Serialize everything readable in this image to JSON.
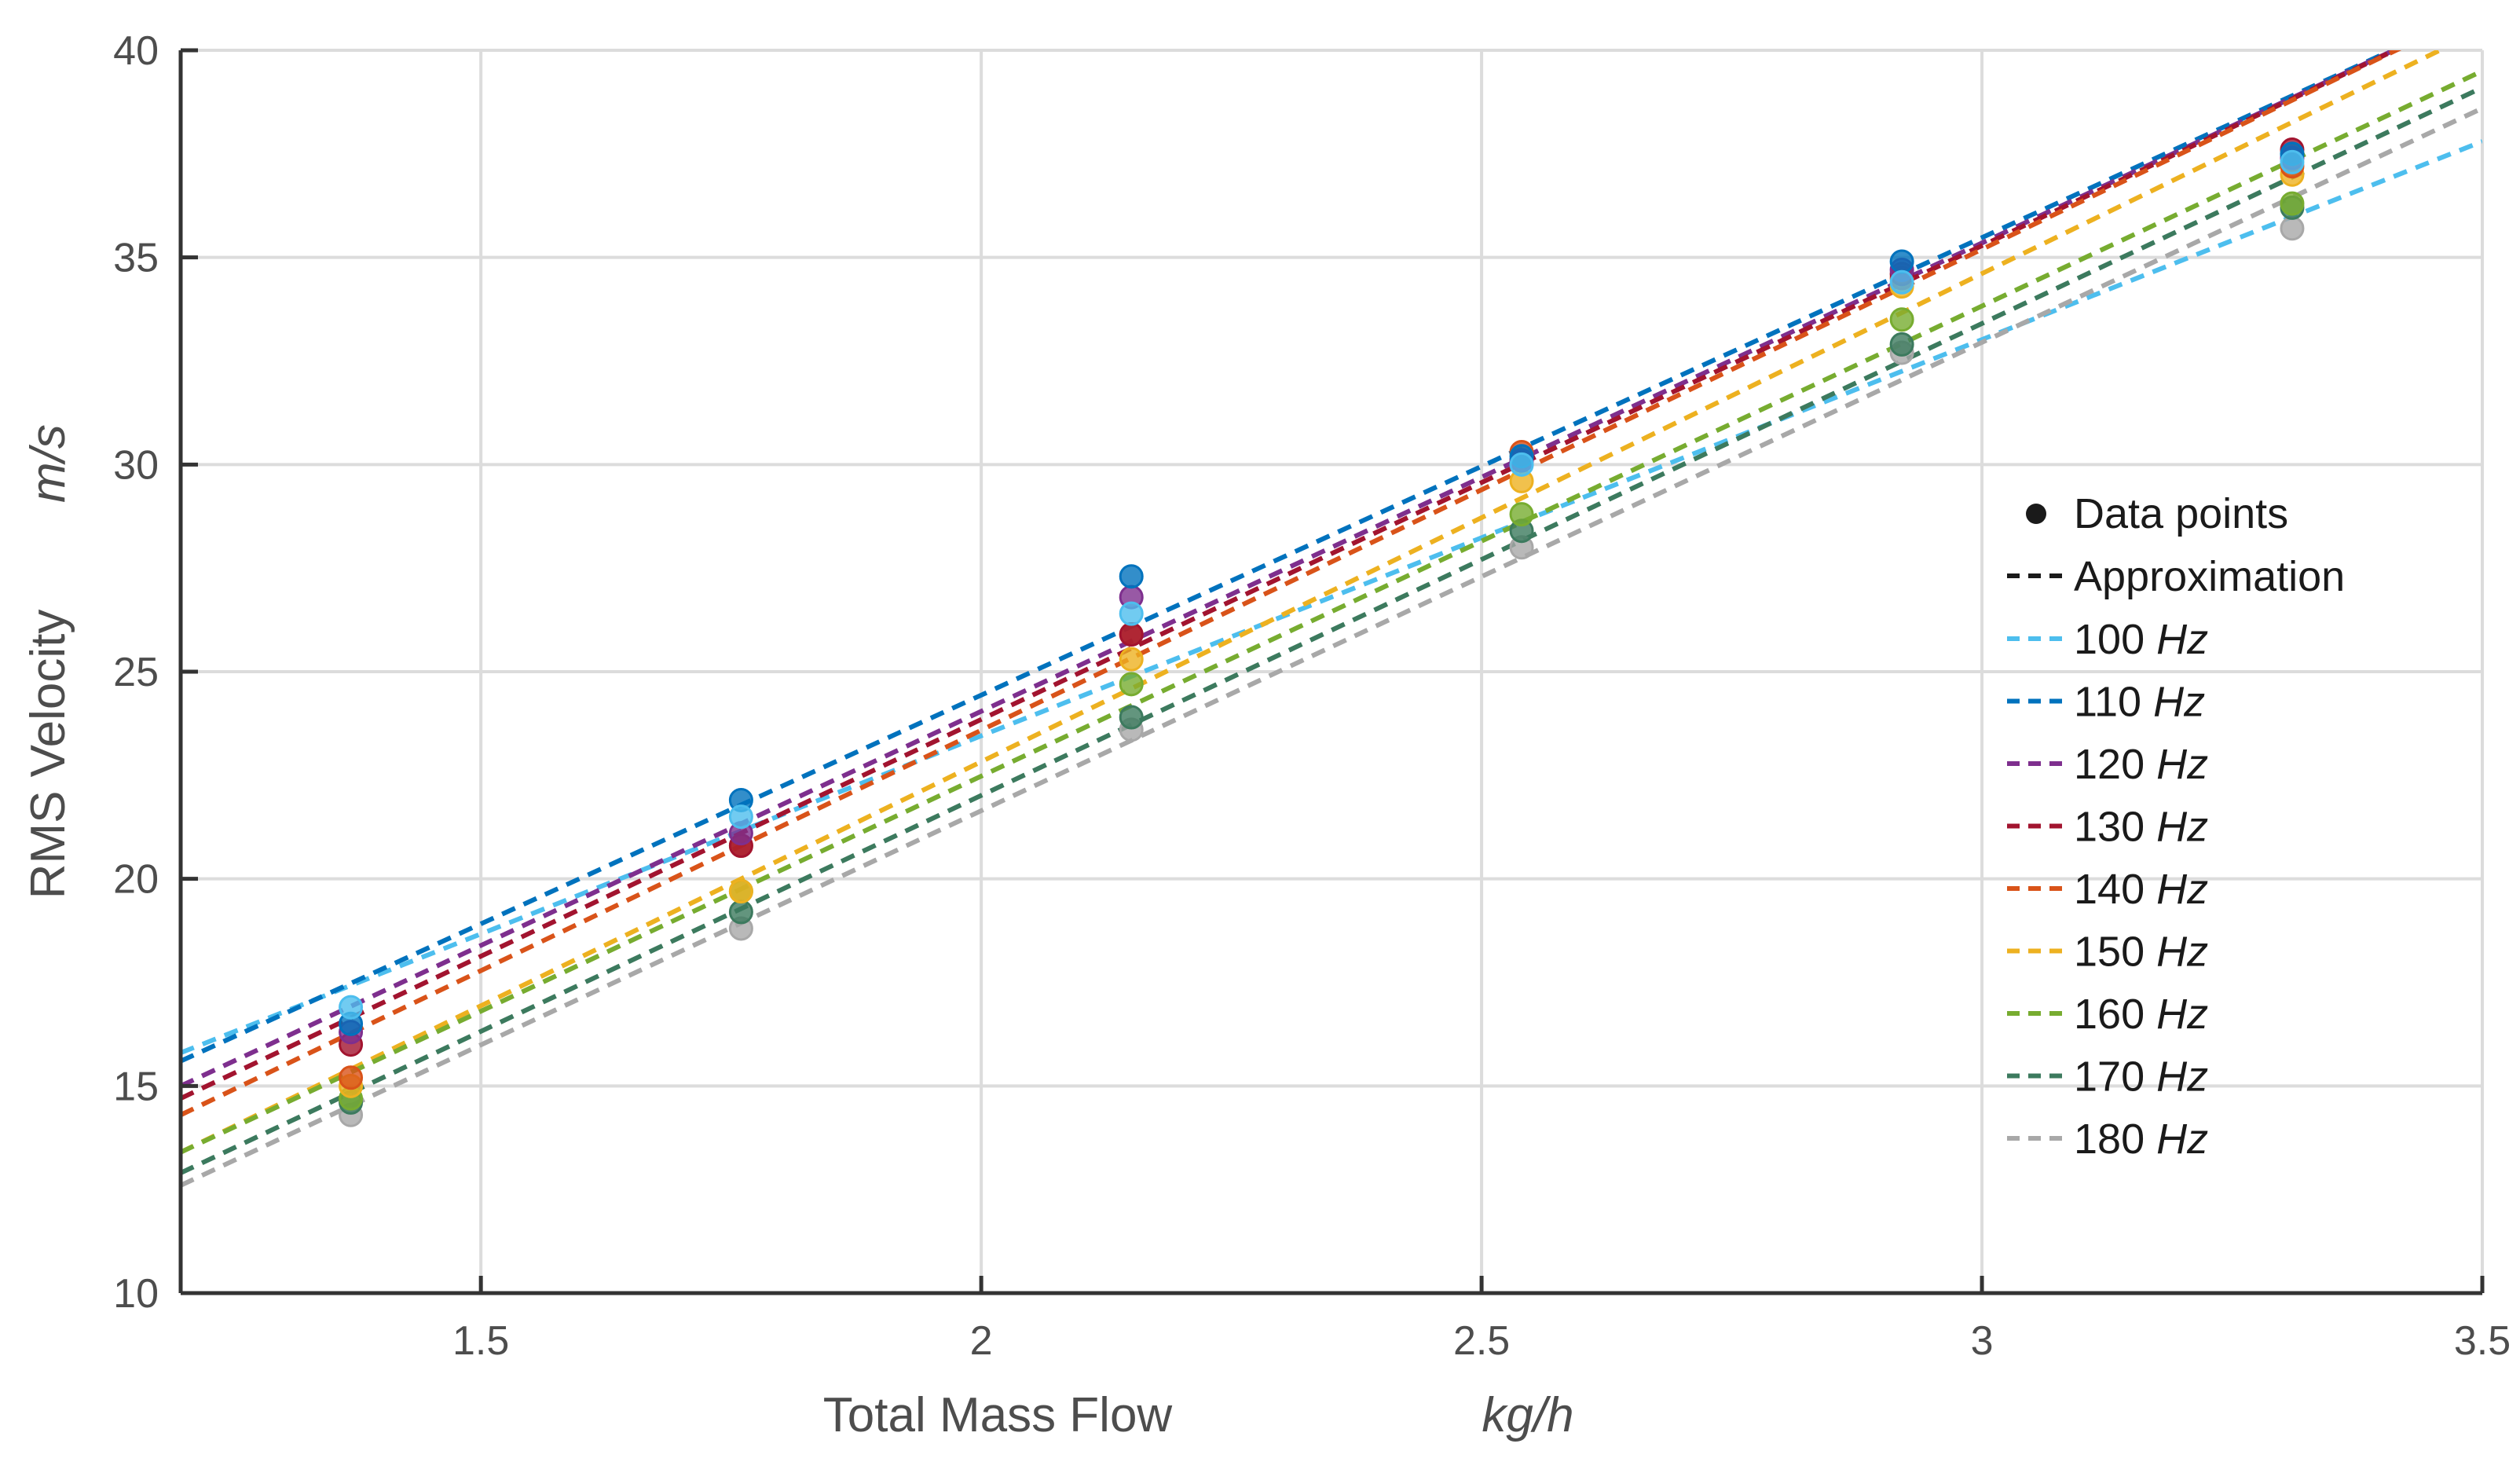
{
  "chart_data": {
    "type": "scatter",
    "xlabel": "Total Mass Flow",
    "xunit": "kg/h",
    "ylabel": "RMS Velocity",
    "yunit": "m/s",
    "xlim": [
      1.2,
      3.5
    ],
    "ylim": [
      10,
      40
    ],
    "xticks": [
      1.5,
      2,
      2.5,
      3,
      3.5
    ],
    "xtick_labels": [
      "1.5",
      "2",
      "2.5",
      "3",
      "3.5"
    ],
    "yticks": [
      10,
      15,
      20,
      25,
      30,
      35,
      40
    ],
    "ytick_labels": [
      "10",
      "15",
      "20",
      "25",
      "30",
      "35",
      "40"
    ],
    "grid": true,
    "legend_position": "right",
    "legend": {
      "data_points_label": "Data points",
      "approximation_label": "Approximation",
      "marker_color": "#1a1a1a"
    },
    "x": [
      1.37,
      1.76,
      2.15,
      2.54,
      2.92,
      3.31
    ],
    "series": [
      {
        "name": "100",
        "unit": "Hz",
        "color": "#4dbeee",
        "values": [
          16.9,
          21.5,
          26.4,
          30.0,
          34.4,
          37.3
        ],
        "line_start": 15.8,
        "line_end": 37.8
      },
      {
        "name": "110",
        "unit": "Hz",
        "color": "#0072bd",
        "values": [
          16.5,
          21.9,
          27.3,
          30.2,
          34.9,
          37.5
        ],
        "line_start": 15.6,
        "line_end": 41.0
      },
      {
        "name": "120",
        "unit": "Hz",
        "color": "#7e2f8e",
        "values": [
          16.3,
          21.1,
          26.8,
          30.1,
          34.7,
          37.4
        ],
        "line_start": 15.0,
        "line_end": 41.0
      },
      {
        "name": "130",
        "unit": "Hz",
        "color": "#a2142f",
        "values": [
          16.0,
          20.8,
          25.9,
          30.1,
          34.6,
          37.6
        ],
        "line_start": 14.7,
        "line_end": 41.0
      },
      {
        "name": "140",
        "unit": "Hz",
        "color": "#d95319",
        "values": [
          15.2,
          20.8,
          25.9,
          30.3,
          34.5,
          37.2
        ],
        "line_start": 14.3,
        "line_end": 41.0
      },
      {
        "name": "150",
        "unit": "Hz",
        "color": "#edb120",
        "values": [
          15.0,
          19.7,
          25.3,
          29.6,
          34.3,
          37.0
        ],
        "line_start": 13.4,
        "line_end": 40.5
      },
      {
        "name": "160",
        "unit": "Hz",
        "color": "#77ac30",
        "values": [
          14.7,
          19.7,
          24.7,
          28.8,
          33.5,
          36.3
        ],
        "line_start": 13.4,
        "line_end": 39.5
      },
      {
        "name": "170",
        "unit": "Hz",
        "color": "#3c7a5e",
        "values": [
          14.6,
          19.2,
          23.9,
          28.4,
          32.9,
          36.2
        ],
        "line_start": 12.9,
        "line_end": 39.1
      },
      {
        "name": "180",
        "unit": "Hz",
        "color": "#a8a8a8",
        "values": [
          14.3,
          18.8,
          23.6,
          28.0,
          32.7,
          35.7
        ],
        "line_start": 12.6,
        "line_end": 38.6
      }
    ]
  }
}
